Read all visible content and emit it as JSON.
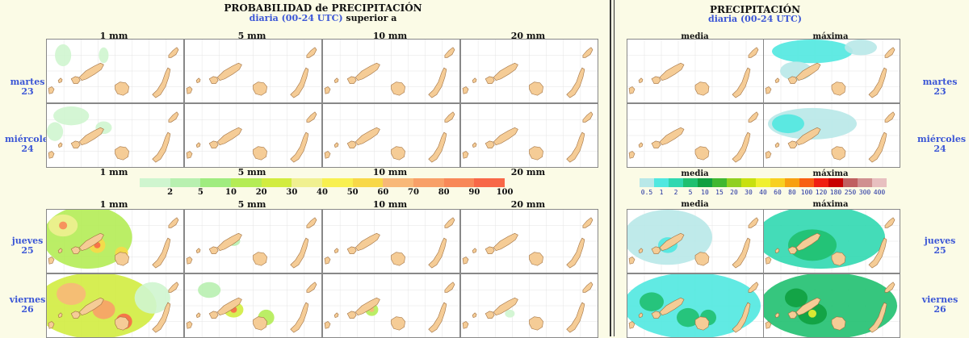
{
  "left": {
    "title": "PROBABILIDAD de PRECIPITACIÓN",
    "subtitle_blue": "diaria (00-24 UTC)",
    "subtitle_black": "superior a",
    "columns": [
      "1 mm",
      "5 mm",
      "10 mm",
      "20 mm"
    ],
    "colorbar": {
      "labels": [
        "2",
        "5",
        "10",
        "20",
        "30",
        "40",
        "50",
        "60",
        "70",
        "80",
        "90",
        "100"
      ],
      "colors": [
        "#cff5cf",
        "#b8f0b0",
        "#a0ec80",
        "#b4ec55",
        "#d2ec40",
        "#f0f090",
        "#f8f050",
        "#f8d848",
        "#f8b878",
        "#f8a068",
        "#f88858",
        "#f86848"
      ]
    }
  },
  "right": {
    "title": "PRECIPITACIÓN",
    "subtitle_blue": "diaria (00-24 UTC)",
    "columns": [
      "media",
      "máxima"
    ],
    "colorbar": {
      "labels": [
        "0.5",
        "1",
        "2",
        "5",
        "10",
        "15",
        "20",
        "30",
        "40",
        "60",
        "80",
        "100",
        "120",
        "180",
        "250",
        "300",
        "400"
      ],
      "colors": [
        "#b8e8e8",
        "#50e8e0",
        "#30d8b0",
        "#20c070",
        "#10a040",
        "#40b830",
        "#90d020",
        "#c8e010",
        "#f0f030",
        "#f8d020",
        "#f8a010",
        "#f86010",
        "#f02010",
        "#c80000",
        "#c06060",
        "#d09090",
        "#e8c0c0"
      ]
    }
  },
  "rows": [
    {
      "day": "martes",
      "num": "23"
    },
    {
      "day": "miércoles",
      "num": "24"
    },
    {
      "day": "jueves",
      "num": "25"
    },
    {
      "day": "viernes",
      "num": "26"
    }
  ],
  "colors": {
    "land": "#f5cc96",
    "coast": "#a07040",
    "title_blue": "#3b56d6"
  }
}
